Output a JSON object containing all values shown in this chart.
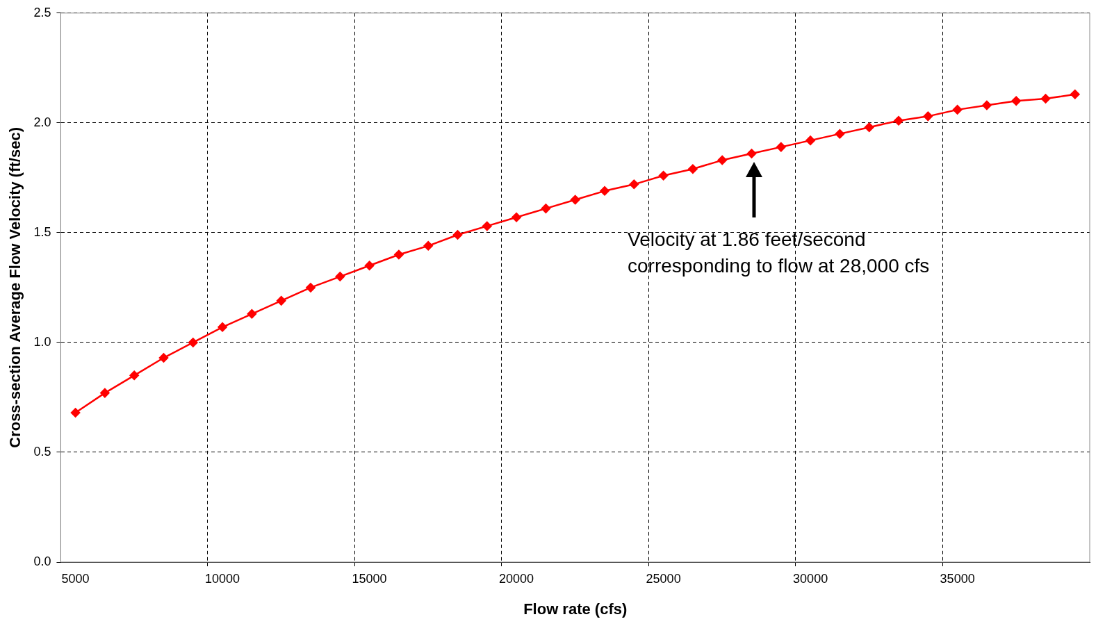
{
  "chart_data": {
    "type": "line",
    "xlabel": "Flow rate (cfs)",
    "ylabel": "Cross-section Average Flow Velocity (ft/sec)",
    "categories": [
      "5000",
      null,
      null,
      null,
      null,
      "10000",
      null,
      null,
      null,
      null,
      "15000",
      null,
      null,
      null,
      null,
      "20000",
      null,
      null,
      null,
      null,
      "25000",
      null,
      null,
      null,
      null,
      "30000",
      null,
      null,
      null,
      null,
      "35000",
      null,
      null,
      null,
      null
    ],
    "series": [
      {
        "color": "#ff0000",
        "values": [
          0.68,
          0.77,
          0.85,
          0.93,
          1.0,
          1.07,
          1.13,
          1.19,
          1.25,
          1.3,
          1.35,
          1.4,
          1.44,
          1.49,
          1.53,
          1.57,
          1.61,
          1.65,
          1.69,
          1.72,
          1.76,
          1.79,
          1.83,
          1.86,
          1.89,
          1.92,
          1.95,
          1.98,
          2.01,
          2.03,
          2.06,
          2.08,
          2.1,
          2.11,
          2.13
        ]
      }
    ],
    "ylim": [
      0,
      2.5
    ],
    "yticks": [
      {
        "value": 0,
        "label": "0.0"
      },
      {
        "value": 0.5,
        "label": "0.5"
      },
      {
        "value": 1,
        "label": "1.0"
      },
      {
        "value": 1.5,
        "label": "1.5"
      },
      {
        "value": 2,
        "label": "2.0"
      },
      {
        "value": 2.5,
        "label": "2.5"
      }
    ],
    "grid": true,
    "marker": "diamond",
    "annotations": [
      "Velocity at 1.86 feet/second corresponding to flow at 28,000 cfs"
    ]
  }
}
